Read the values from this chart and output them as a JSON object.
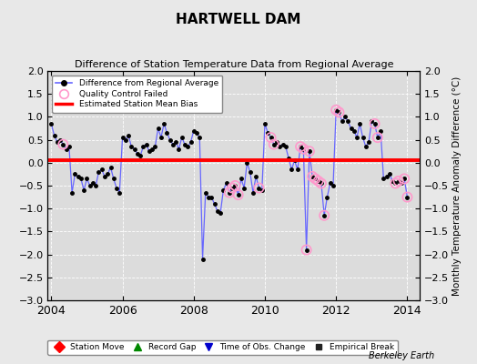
{
  "title": "HARTWELL DAM",
  "subtitle": "Difference of Station Temperature Data from Regional Average",
  "ylabel": "Monthly Temperature Anomaly Difference (°C)",
  "xlabel_bottom": "Berkeley Earth",
  "bias_value": 0.05,
  "ylim": [
    -3,
    2
  ],
  "xlim": [
    2003.9,
    2014.35
  ],
  "background_color": "#e8e8e8",
  "plot_bg_color": "#dcdcdc",
  "x_ticks": [
    2004,
    2006,
    2008,
    2010,
    2012,
    2014
  ],
  "y_ticks": [
    -3,
    -2.5,
    -2,
    -1.5,
    -1,
    -0.5,
    0,
    0.5,
    1,
    1.5,
    2
  ],
  "line_color": "#6666ff",
  "marker_color": "#000000",
  "bias_color": "#ff0000",
  "qc_color": "#ff99cc",
  "times": [
    2004.0,
    2004.083,
    2004.167,
    2004.25,
    2004.333,
    2004.417,
    2004.5,
    2004.583,
    2004.667,
    2004.75,
    2004.833,
    2004.917,
    2005.0,
    2005.083,
    2005.167,
    2005.25,
    2005.333,
    2005.417,
    2005.5,
    2005.583,
    2005.667,
    2005.75,
    2005.833,
    2005.917,
    2006.0,
    2006.083,
    2006.167,
    2006.25,
    2006.333,
    2006.417,
    2006.5,
    2006.583,
    2006.667,
    2006.75,
    2006.833,
    2006.917,
    2007.0,
    2007.083,
    2007.167,
    2007.25,
    2007.333,
    2007.417,
    2007.5,
    2007.583,
    2007.667,
    2007.75,
    2007.833,
    2007.917,
    2008.0,
    2008.083,
    2008.167,
    2008.25,
    2008.333,
    2008.417,
    2008.5,
    2008.583,
    2008.667,
    2008.75,
    2008.833,
    2008.917,
    2009.0,
    2009.083,
    2009.167,
    2009.25,
    2009.333,
    2009.417,
    2009.5,
    2009.583,
    2009.667,
    2009.75,
    2009.833,
    2009.917,
    2010.0,
    2010.083,
    2010.167,
    2010.25,
    2010.333,
    2010.417,
    2010.5,
    2010.583,
    2010.667,
    2010.75,
    2010.833,
    2010.917,
    2011.0,
    2011.083,
    2011.167,
    2011.25,
    2011.333,
    2011.417,
    2011.5,
    2011.583,
    2011.667,
    2011.75,
    2011.833,
    2011.917,
    2012.0,
    2012.083,
    2012.167,
    2012.25,
    2012.333,
    2012.417,
    2012.5,
    2012.583,
    2012.667,
    2012.75,
    2012.833,
    2012.917,
    2013.0,
    2013.083,
    2013.167,
    2013.25,
    2013.333,
    2013.417,
    2013.5,
    2013.583,
    2013.667,
    2013.75,
    2013.833,
    2013.917,
    2014.0
  ],
  "values": [
    0.85,
    0.6,
    0.45,
    0.5,
    0.4,
    0.3,
    0.35,
    -0.65,
    -0.25,
    -0.3,
    -0.35,
    -0.6,
    -0.35,
    -0.5,
    -0.45,
    -0.5,
    -0.2,
    -0.15,
    -0.3,
    -0.25,
    -0.1,
    -0.35,
    -0.55,
    -0.65,
    0.55,
    0.5,
    0.6,
    0.35,
    0.3,
    0.2,
    0.15,
    0.35,
    0.4,
    0.25,
    0.3,
    0.35,
    0.75,
    0.55,
    0.85,
    0.65,
    0.5,
    0.4,
    0.45,
    0.3,
    0.55,
    0.4,
    0.35,
    0.45,
    0.7,
    0.65,
    0.55,
    -2.1,
    -0.65,
    -0.75,
    -0.75,
    -0.9,
    -1.05,
    -1.1,
    -0.6,
    -0.45,
    -0.65,
    -0.55,
    -0.5,
    -0.7,
    -0.35,
    -0.55,
    0.0,
    -0.2,
    -0.65,
    -0.3,
    -0.55,
    -0.6,
    0.85,
    0.65,
    0.55,
    0.4,
    0.45,
    0.35,
    0.4,
    0.35,
    0.1,
    -0.15,
    0.05,
    -0.15,
    0.35,
    0.3,
    -1.9,
    0.25,
    -0.3,
    -0.35,
    -0.4,
    -0.45,
    -1.15,
    -0.75,
    -0.45,
    -0.5,
    1.15,
    1.1,
    0.9,
    1.0,
    0.9,
    0.75,
    0.7,
    0.55,
    0.85,
    0.55,
    0.35,
    0.45,
    0.9,
    0.85,
    0.55,
    0.7,
    -0.35,
    -0.3,
    -0.25,
    -0.4,
    -0.45,
    -0.4,
    -0.45,
    -0.35,
    -0.75
  ],
  "qc_failed_indices": [
    4,
    60,
    61,
    62,
    63,
    70,
    74,
    75,
    84,
    85,
    86,
    87,
    88,
    89,
    90,
    91,
    92,
    96,
    97,
    109,
    110,
    116,
    117,
    119,
    120
  ],
  "figsize": [
    5.24,
    4.0
  ],
  "dpi": 100
}
